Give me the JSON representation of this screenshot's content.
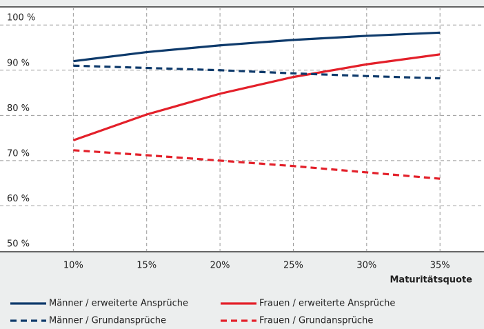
{
  "chart_data": {
    "type": "line",
    "x_label": "Maturitätsquote",
    "x": [
      10,
      15,
      20,
      25,
      30,
      35
    ],
    "xlim": [
      5,
      38
    ],
    "xticks": [
      {
        "value": 10,
        "label": "10%"
      },
      {
        "value": 15,
        "label": "15%"
      },
      {
        "value": 20,
        "label": "20%"
      },
      {
        "value": 25,
        "label": "25%"
      },
      {
        "value": 30,
        "label": "30%"
      },
      {
        "value": 35,
        "label": "35%"
      }
    ],
    "ylim": [
      50,
      104
    ],
    "yticks": [
      {
        "value": 50,
        "label": "50 %"
      },
      {
        "value": 60,
        "label": "60 %"
      },
      {
        "value": 70,
        "label": "70 %"
      },
      {
        "value": 80,
        "label": "80 %"
      },
      {
        "value": 90,
        "label": "90 %"
      },
      {
        "value": 100,
        "label": "100 %"
      }
    ],
    "grid": true,
    "series": [
      {
        "name": "Männer / erweiterte Ansprüche",
        "color": "#0e3a6b",
        "dashed": false,
        "values": [
          92,
          94,
          95.5,
          96.7,
          97.6,
          98.3
        ]
      },
      {
        "name": "Frauen / erweiterte Ansprüche",
        "color": "#e3202a",
        "dashed": false,
        "values": [
          74.5,
          80.2,
          84.8,
          88.5,
          91.3,
          93.5
        ]
      },
      {
        "name": "Männer / Grundansprüche",
        "color": "#0e3a6b",
        "dashed": true,
        "values": [
          91,
          90.5,
          90,
          89.3,
          88.7,
          88.2
        ]
      },
      {
        "name": "Frauen / Grundansprüche",
        "color": "#e3202a",
        "dashed": true,
        "values": [
          72.3,
          71.2,
          70,
          68.8,
          67.4,
          66
        ]
      }
    ]
  }
}
